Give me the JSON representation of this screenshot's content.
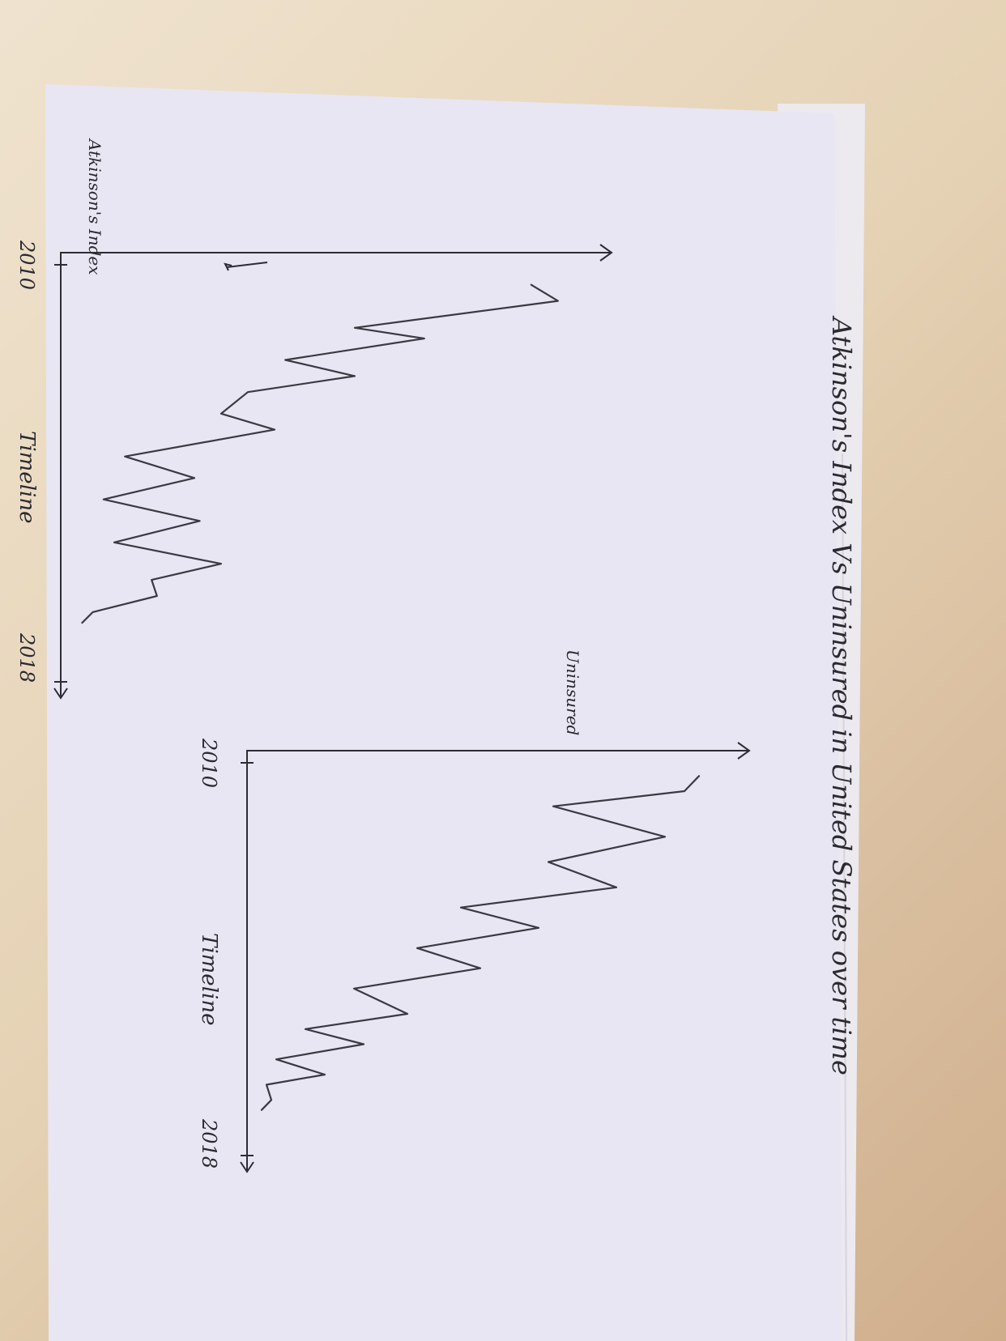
{
  "chart_data": [
    {
      "type": "line",
      "title": "Atkinson's Index Vs Uninsured in United States over time",
      "xlabel": "Timeline",
      "ylabel": "Atkinson's Index",
      "x_ticks": [
        "2010",
        "2018"
      ],
      "x_range": [
        2010,
        2018
      ],
      "series": [
        {
          "x": [
            2010.6,
            2010.9,
            2011.4,
            2011.6,
            2012.0,
            2012.3,
            2012.6,
            2013.0,
            2013.3,
            2013.8,
            2014.2,
            2014.6,
            2015.0,
            2015.4,
            2015.8,
            2016.1,
            2016.4,
            2016.7,
            2016.9
          ],
          "y": [
            0.88,
            0.93,
            0.55,
            0.68,
            0.42,
            0.55,
            0.35,
            0.3,
            0.4,
            0.12,
            0.25,
            0.08,
            0.26,
            0.1,
            0.3,
            0.17,
            0.18,
            0.06,
            0.04
          ]
        }
      ]
    },
    {
      "type": "line",
      "title": "",
      "xlabel": "Timeline",
      "ylabel": "Uninsured",
      "x_ticks": [
        "2010",
        "2018"
      ],
      "x_range": [
        2010,
        2018
      ],
      "series": [
        {
          "x": [
            2010.5,
            2010.8,
            2011.1,
            2011.7,
            2012.2,
            2012.7,
            2013.1,
            2013.5,
            2013.9,
            2014.3,
            2014.7,
            2015.2,
            2015.5,
            2015.8,
            2016.1,
            2016.4,
            2016.6,
            2016.9,
            2017.1
          ],
          "y": [
            0.93,
            0.9,
            0.63,
            0.86,
            0.62,
            0.76,
            0.44,
            0.6,
            0.35,
            0.48,
            0.22,
            0.33,
            0.12,
            0.24,
            0.06,
            0.16,
            0.04,
            0.05,
            0.03
          ]
        }
      ]
    }
  ]
}
